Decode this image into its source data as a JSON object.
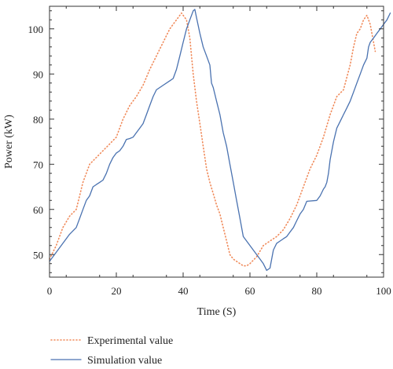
{
  "chart_data": {
    "type": "line",
    "xlabel": "Time (S)",
    "ylabel": "Power (kW)",
    "xlim": [
      0,
      100
    ],
    "ylim": [
      45,
      105
    ],
    "xticks": [
      0,
      20,
      40,
      60,
      80,
      100
    ],
    "yticks": [
      50,
      60,
      70,
      80,
      90,
      100
    ],
    "grid": false,
    "legend_position": "bottom-left",
    "series": [
      {
        "name": "Experimental value",
        "color": "#f08a5a",
        "style": "dotted",
        "points": [
          [
            0,
            49
          ],
          [
            2,
            52
          ],
          [
            4,
            56
          ],
          [
            6,
            58.5
          ],
          [
            8,
            60
          ],
          [
            10,
            66
          ],
          [
            12,
            70
          ],
          [
            14,
            71.5
          ],
          [
            16,
            73
          ],
          [
            18,
            74.5
          ],
          [
            20,
            76
          ],
          [
            22,
            80
          ],
          [
            24,
            83
          ],
          [
            26,
            85
          ],
          [
            28,
            87.5
          ],
          [
            30,
            91
          ],
          [
            32,
            94
          ],
          [
            34,
            97
          ],
          [
            36,
            100
          ],
          [
            38,
            102
          ],
          [
            39.5,
            103.5
          ],
          [
            41,
            102
          ],
          [
            42,
            98
          ],
          [
            43,
            90
          ],
          [
            44,
            84
          ],
          [
            45,
            79
          ],
          [
            46,
            74
          ],
          [
            47,
            69
          ],
          [
            48,
            66
          ],
          [
            49,
            63.5
          ],
          [
            50,
            61
          ],
          [
            51,
            59
          ],
          [
            52,
            56
          ],
          [
            53,
            53
          ],
          [
            54,
            50
          ],
          [
            55,
            49
          ],
          [
            56,
            48.5
          ],
          [
            57,
            48
          ],
          [
            58,
            47.5
          ],
          [
            59,
            47.5
          ],
          [
            60,
            48
          ],
          [
            62,
            49.5
          ],
          [
            64,
            52
          ],
          [
            66,
            53
          ],
          [
            68,
            54
          ],
          [
            70,
            55.5
          ],
          [
            72,
            58
          ],
          [
            74,
            61
          ],
          [
            76,
            65
          ],
          [
            78,
            69
          ],
          [
            80,
            72
          ],
          [
            82,
            76
          ],
          [
            84,
            81
          ],
          [
            86,
            85
          ],
          [
            88,
            86.5
          ],
          [
            90,
            92
          ],
          [
            91,
            96
          ],
          [
            92,
            99
          ],
          [
            93,
            100
          ],
          [
            94,
            102
          ],
          [
            95,
            103
          ],
          [
            96,
            101
          ],
          [
            97,
            97
          ],
          [
            97.5,
            95
          ]
        ]
      },
      {
        "name": "Simulation value",
        "color": "#4a72b0",
        "style": "solid",
        "points": [
          [
            0,
            48.5
          ],
          [
            2,
            50.5
          ],
          [
            4,
            52.5
          ],
          [
            6,
            54.5
          ],
          [
            8,
            56
          ],
          [
            9,
            58
          ],
          [
            10,
            60
          ],
          [
            11,
            62
          ],
          [
            12,
            63
          ],
          [
            13,
            65
          ],
          [
            14,
            65.5
          ],
          [
            15,
            66
          ],
          [
            16,
            66.5
          ],
          [
            17,
            68
          ],
          [
            18,
            70
          ],
          [
            19,
            71.5
          ],
          [
            20,
            72.5
          ],
          [
            21,
            73
          ],
          [
            22,
            74
          ],
          [
            23,
            75.5
          ],
          [
            24,
            75.7
          ],
          [
            25,
            76
          ],
          [
            26,
            77
          ],
          [
            27,
            78
          ],
          [
            28,
            79
          ],
          [
            29,
            81
          ],
          [
            30,
            83
          ],
          [
            31,
            85
          ],
          [
            32,
            86.5
          ],
          [
            34,
            87.5
          ],
          [
            36,
            88.5
          ],
          [
            37,
            89
          ],
          [
            38,
            91
          ],
          [
            39,
            94
          ],
          [
            40,
            97
          ],
          [
            41,
            100
          ],
          [
            42,
            102
          ],
          [
            43,
            104
          ],
          [
            43.5,
            104.3
          ],
          [
            44,
            102.5
          ],
          [
            45,
            99
          ],
          [
            46,
            96
          ],
          [
            47,
            94
          ],
          [
            48,
            92
          ],
          [
            48.5,
            88
          ],
          [
            49,
            87
          ],
          [
            50,
            84
          ],
          [
            51,
            81
          ],
          [
            52,
            77
          ],
          [
            53,
            74
          ],
          [
            54,
            70
          ],
          [
            55,
            66
          ],
          [
            56,
            62
          ],
          [
            57,
            58
          ],
          [
            58,
            54
          ],
          [
            60,
            52
          ],
          [
            62,
            50
          ],
          [
            63,
            49
          ],
          [
            64,
            48
          ],
          [
            65,
            46.5
          ],
          [
            66,
            47
          ],
          [
            67,
            51
          ],
          [
            68,
            52.5
          ],
          [
            69,
            53
          ],
          [
            70,
            53.5
          ],
          [
            71,
            54
          ],
          [
            72,
            55
          ],
          [
            73,
            56
          ],
          [
            74,
            57.5
          ],
          [
            75,
            59
          ],
          [
            76,
            60
          ],
          [
            77,
            61.8
          ],
          [
            80,
            62
          ],
          [
            81,
            63
          ],
          [
            82,
            64.5
          ],
          [
            82.5,
            65
          ],
          [
            83,
            66
          ],
          [
            83.5,
            68
          ],
          [
            84,
            71
          ],
          [
            85,
            75
          ],
          [
            86,
            78
          ],
          [
            87,
            79.5
          ],
          [
            88,
            81
          ],
          [
            89,
            82.5
          ],
          [
            90,
            84
          ],
          [
            91,
            86
          ],
          [
            92,
            88
          ],
          [
            93,
            90
          ],
          [
            94,
            92
          ],
          [
            95,
            93.5
          ],
          [
            95.5,
            96
          ],
          [
            96,
            97
          ],
          [
            97,
            98
          ],
          [
            98,
            99
          ],
          [
            99,
            100
          ],
          [
            100,
            101
          ],
          [
            101,
            102
          ],
          [
            102,
            103.5
          ]
        ]
      }
    ]
  }
}
